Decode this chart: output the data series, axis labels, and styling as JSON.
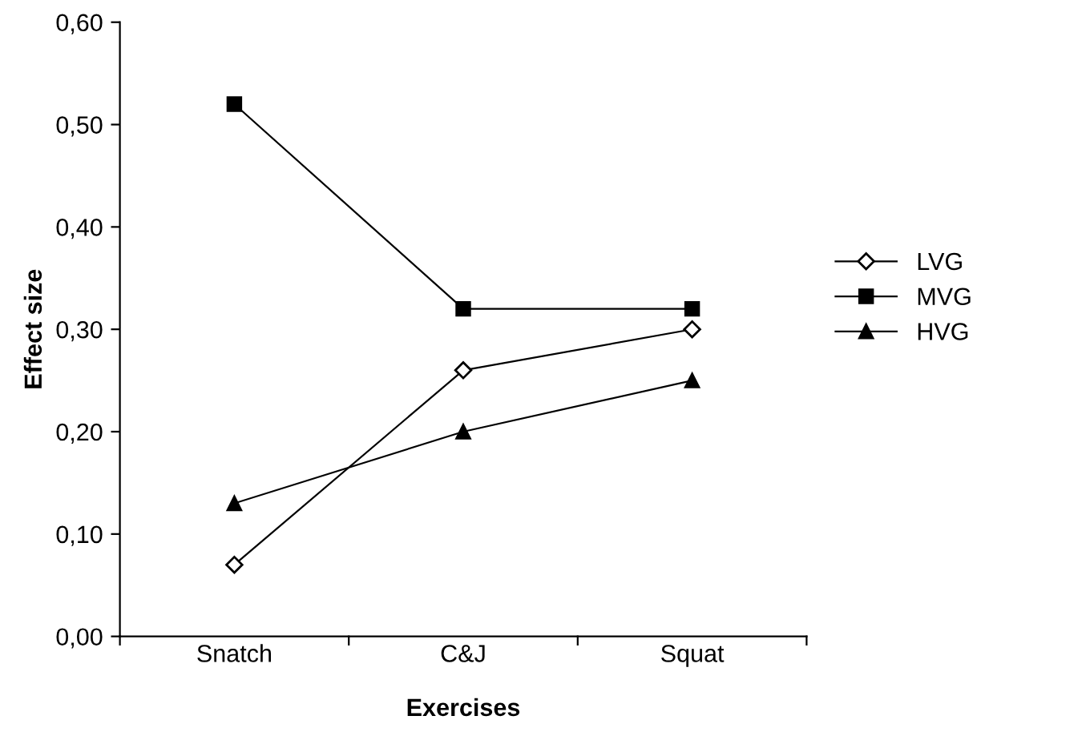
{
  "chart_data": {
    "type": "line",
    "xlabel": "Exercises",
    "ylabel": "Effect size",
    "categories": [
      "Snatch",
      "C&J",
      "Squat"
    ],
    "series": [
      {
        "name": "LVG",
        "color": "#000000",
        "marker": "diamond_open",
        "values": [
          0.07,
          0.26,
          0.3
        ]
      },
      {
        "name": "MVG",
        "color": "#000000",
        "marker": "square",
        "values": [
          0.52,
          0.32,
          0.32
        ]
      },
      {
        "name": "HVG",
        "color": "#000000",
        "marker": "triangle",
        "values": [
          0.13,
          0.2,
          0.25
        ]
      }
    ],
    "ylim": [
      0,
      0.6
    ],
    "yticks": [
      {
        "value": 0,
        "label": "0,00"
      },
      {
        "value": 0.1,
        "label": "0,10"
      },
      {
        "value": 0.2,
        "label": "0,20"
      },
      {
        "value": 0.3,
        "label": "0,30"
      },
      {
        "value": 0.4,
        "label": "0,40"
      },
      {
        "value": 0.5,
        "label": "0,50"
      },
      {
        "value": 0.6,
        "label": "0,60"
      }
    ],
    "grid": false,
    "legend": "right",
    "line_style": "solid"
  }
}
